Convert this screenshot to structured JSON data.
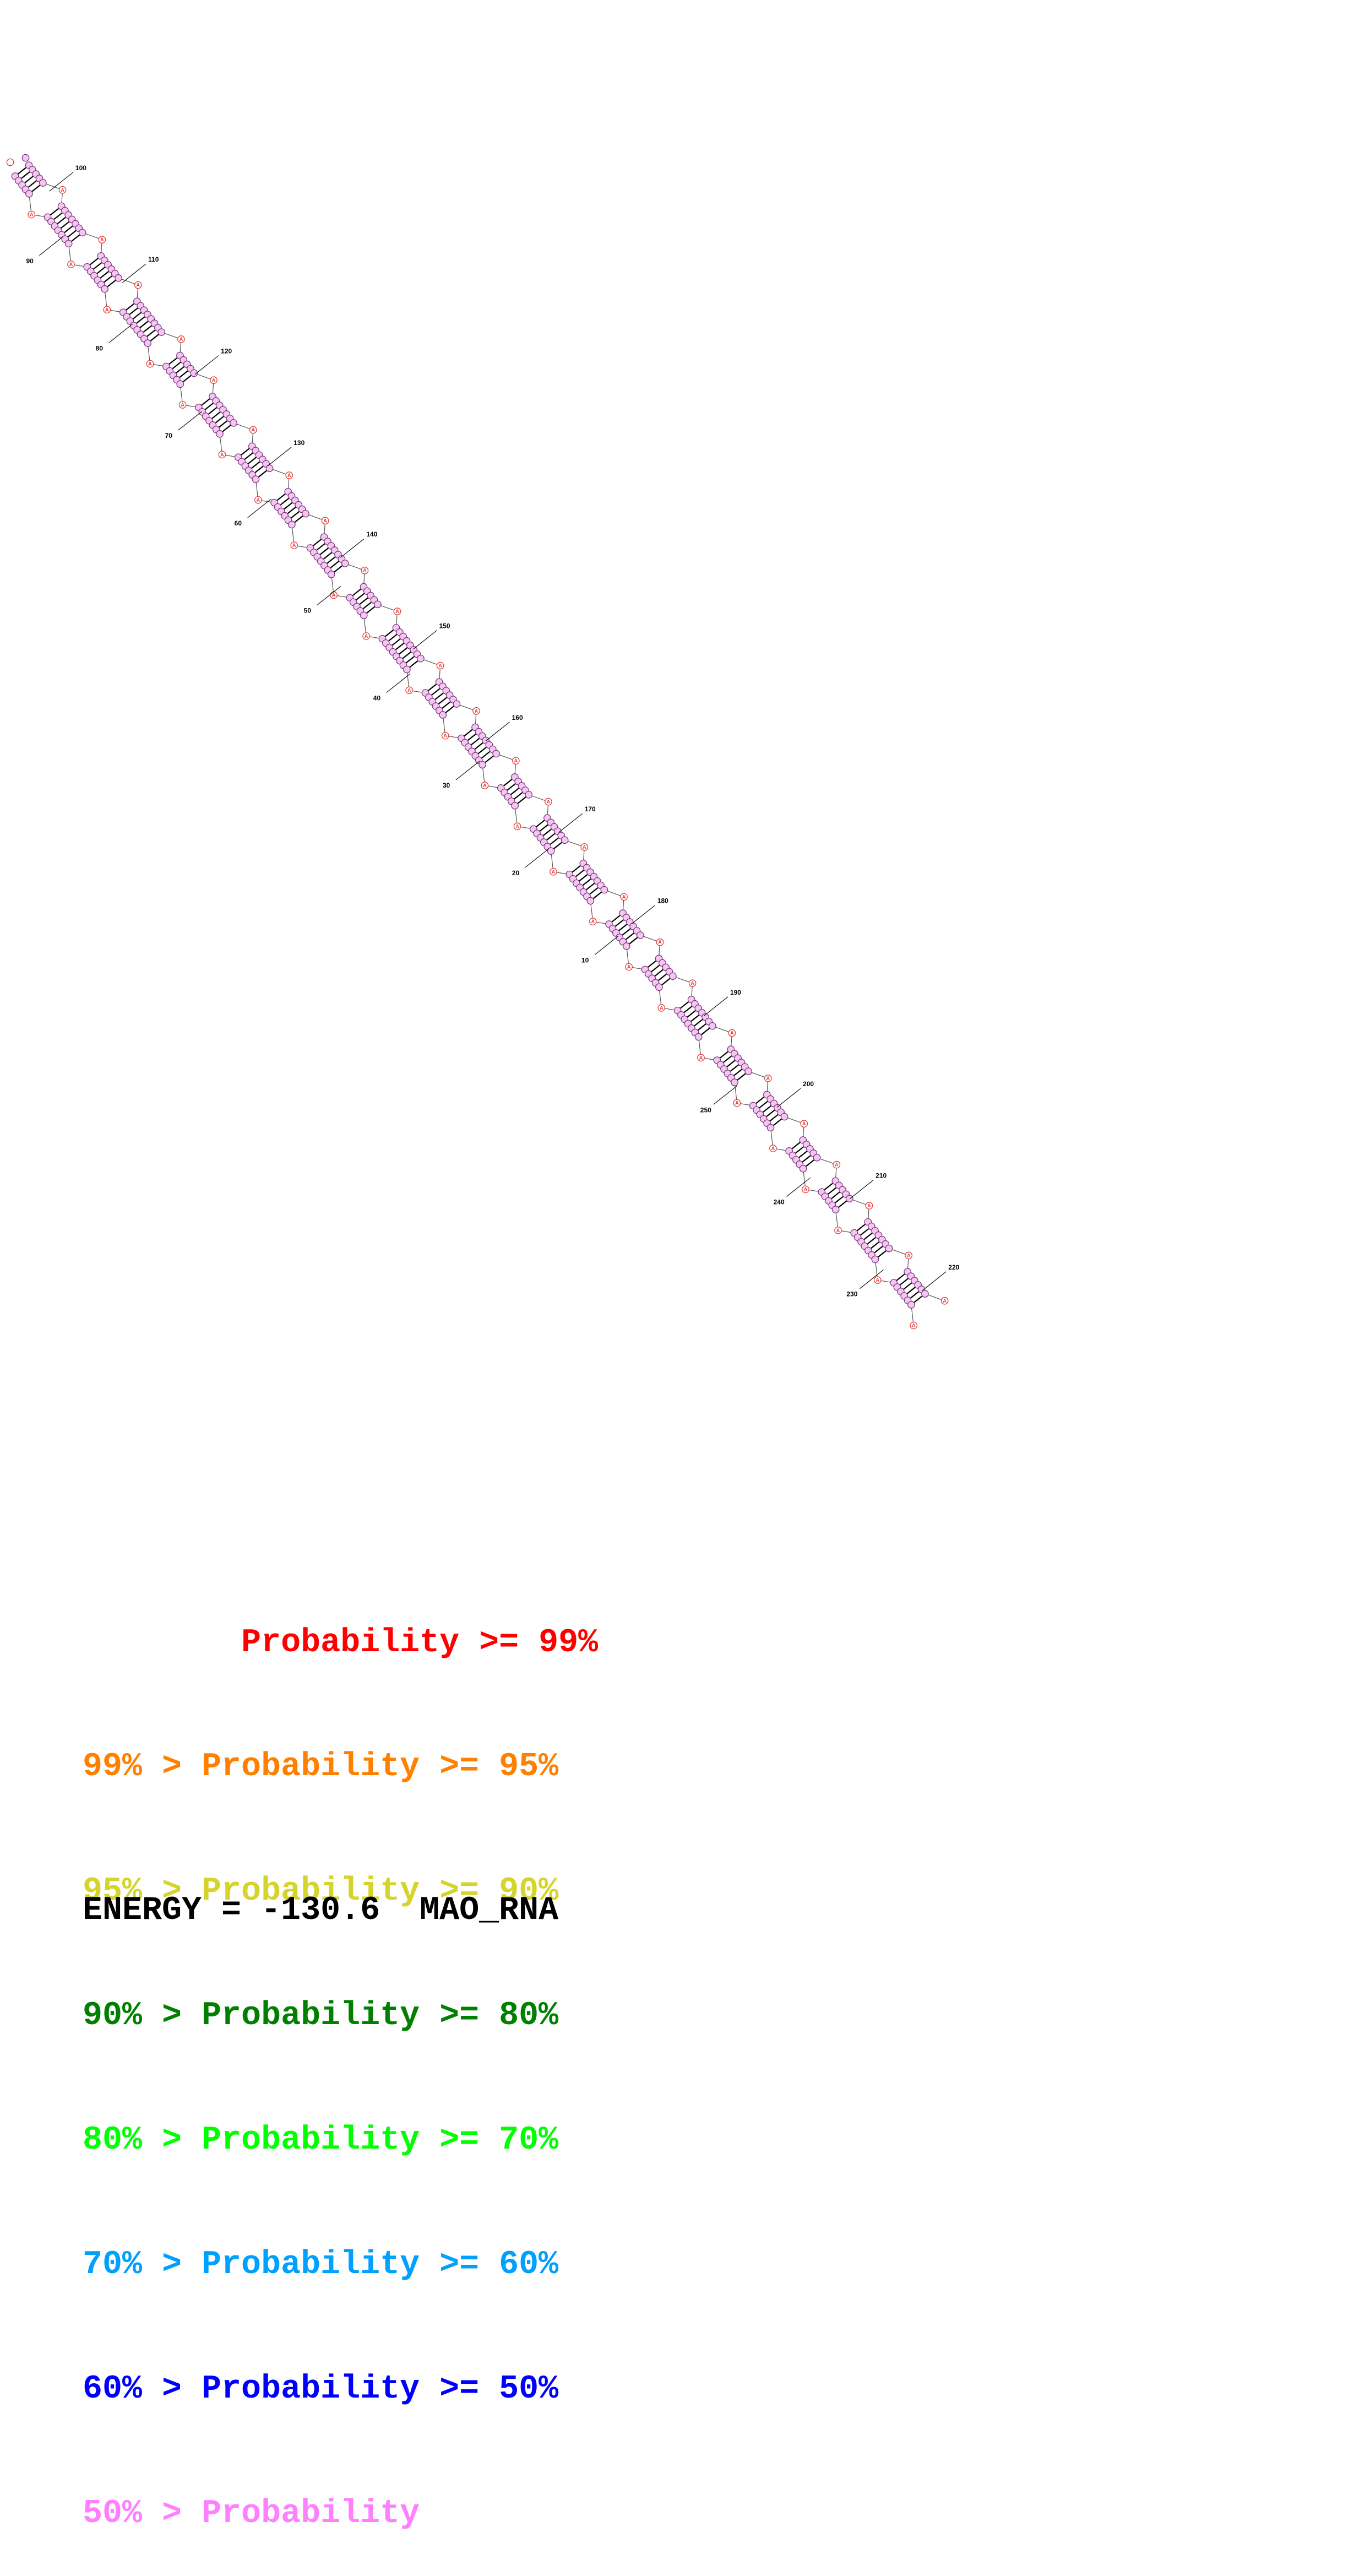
{
  "structure": {
    "position_labels": [
      "10",
      "20",
      "30",
      "40",
      "50",
      "60",
      "70",
      "80",
      "90",
      "100",
      "110",
      "120",
      "130",
      "140",
      "150",
      "160",
      "170",
      "180",
      "190",
      "200",
      "210",
      "220",
      "230",
      "240",
      "250"
    ],
    "nucleotide_letter": "A",
    "colors": {
      "unpaired_highlight": "#e53935",
      "base": "#f5c6f3",
      "base_stroke": "#7a3a78",
      "bond": "#000000"
    }
  },
  "legend": {
    "items": [
      {
        "prefix": "    ",
        "text": "Probability >= 99%",
        "color": "#ff0000"
      },
      {
        "prefix": "99% > ",
        "text": "Probability >= 95%",
        "color": "#ff8000"
      },
      {
        "prefix": "95% > ",
        "text": "Probability >= 90%",
        "color": "#d4d42c"
      },
      {
        "prefix": "90% > ",
        "text": "Probability >= 80%",
        "color": "#008000"
      },
      {
        "prefix": "80% > ",
        "text": "Probability >= 70%",
        "color": "#00ff00"
      },
      {
        "prefix": "70% > ",
        "text": "Probability >= 60%",
        "color": "#00a0ff"
      },
      {
        "prefix": "60% > ",
        "text": "Probability >= 50%",
        "color": "#0000ff"
      },
      {
        "prefix": "50% > ",
        "text": "Probability",
        "color": "#ff80ff"
      }
    ]
  },
  "footer": {
    "energy": "ENERGY = -130.6",
    "name": "MAO_RNA"
  }
}
